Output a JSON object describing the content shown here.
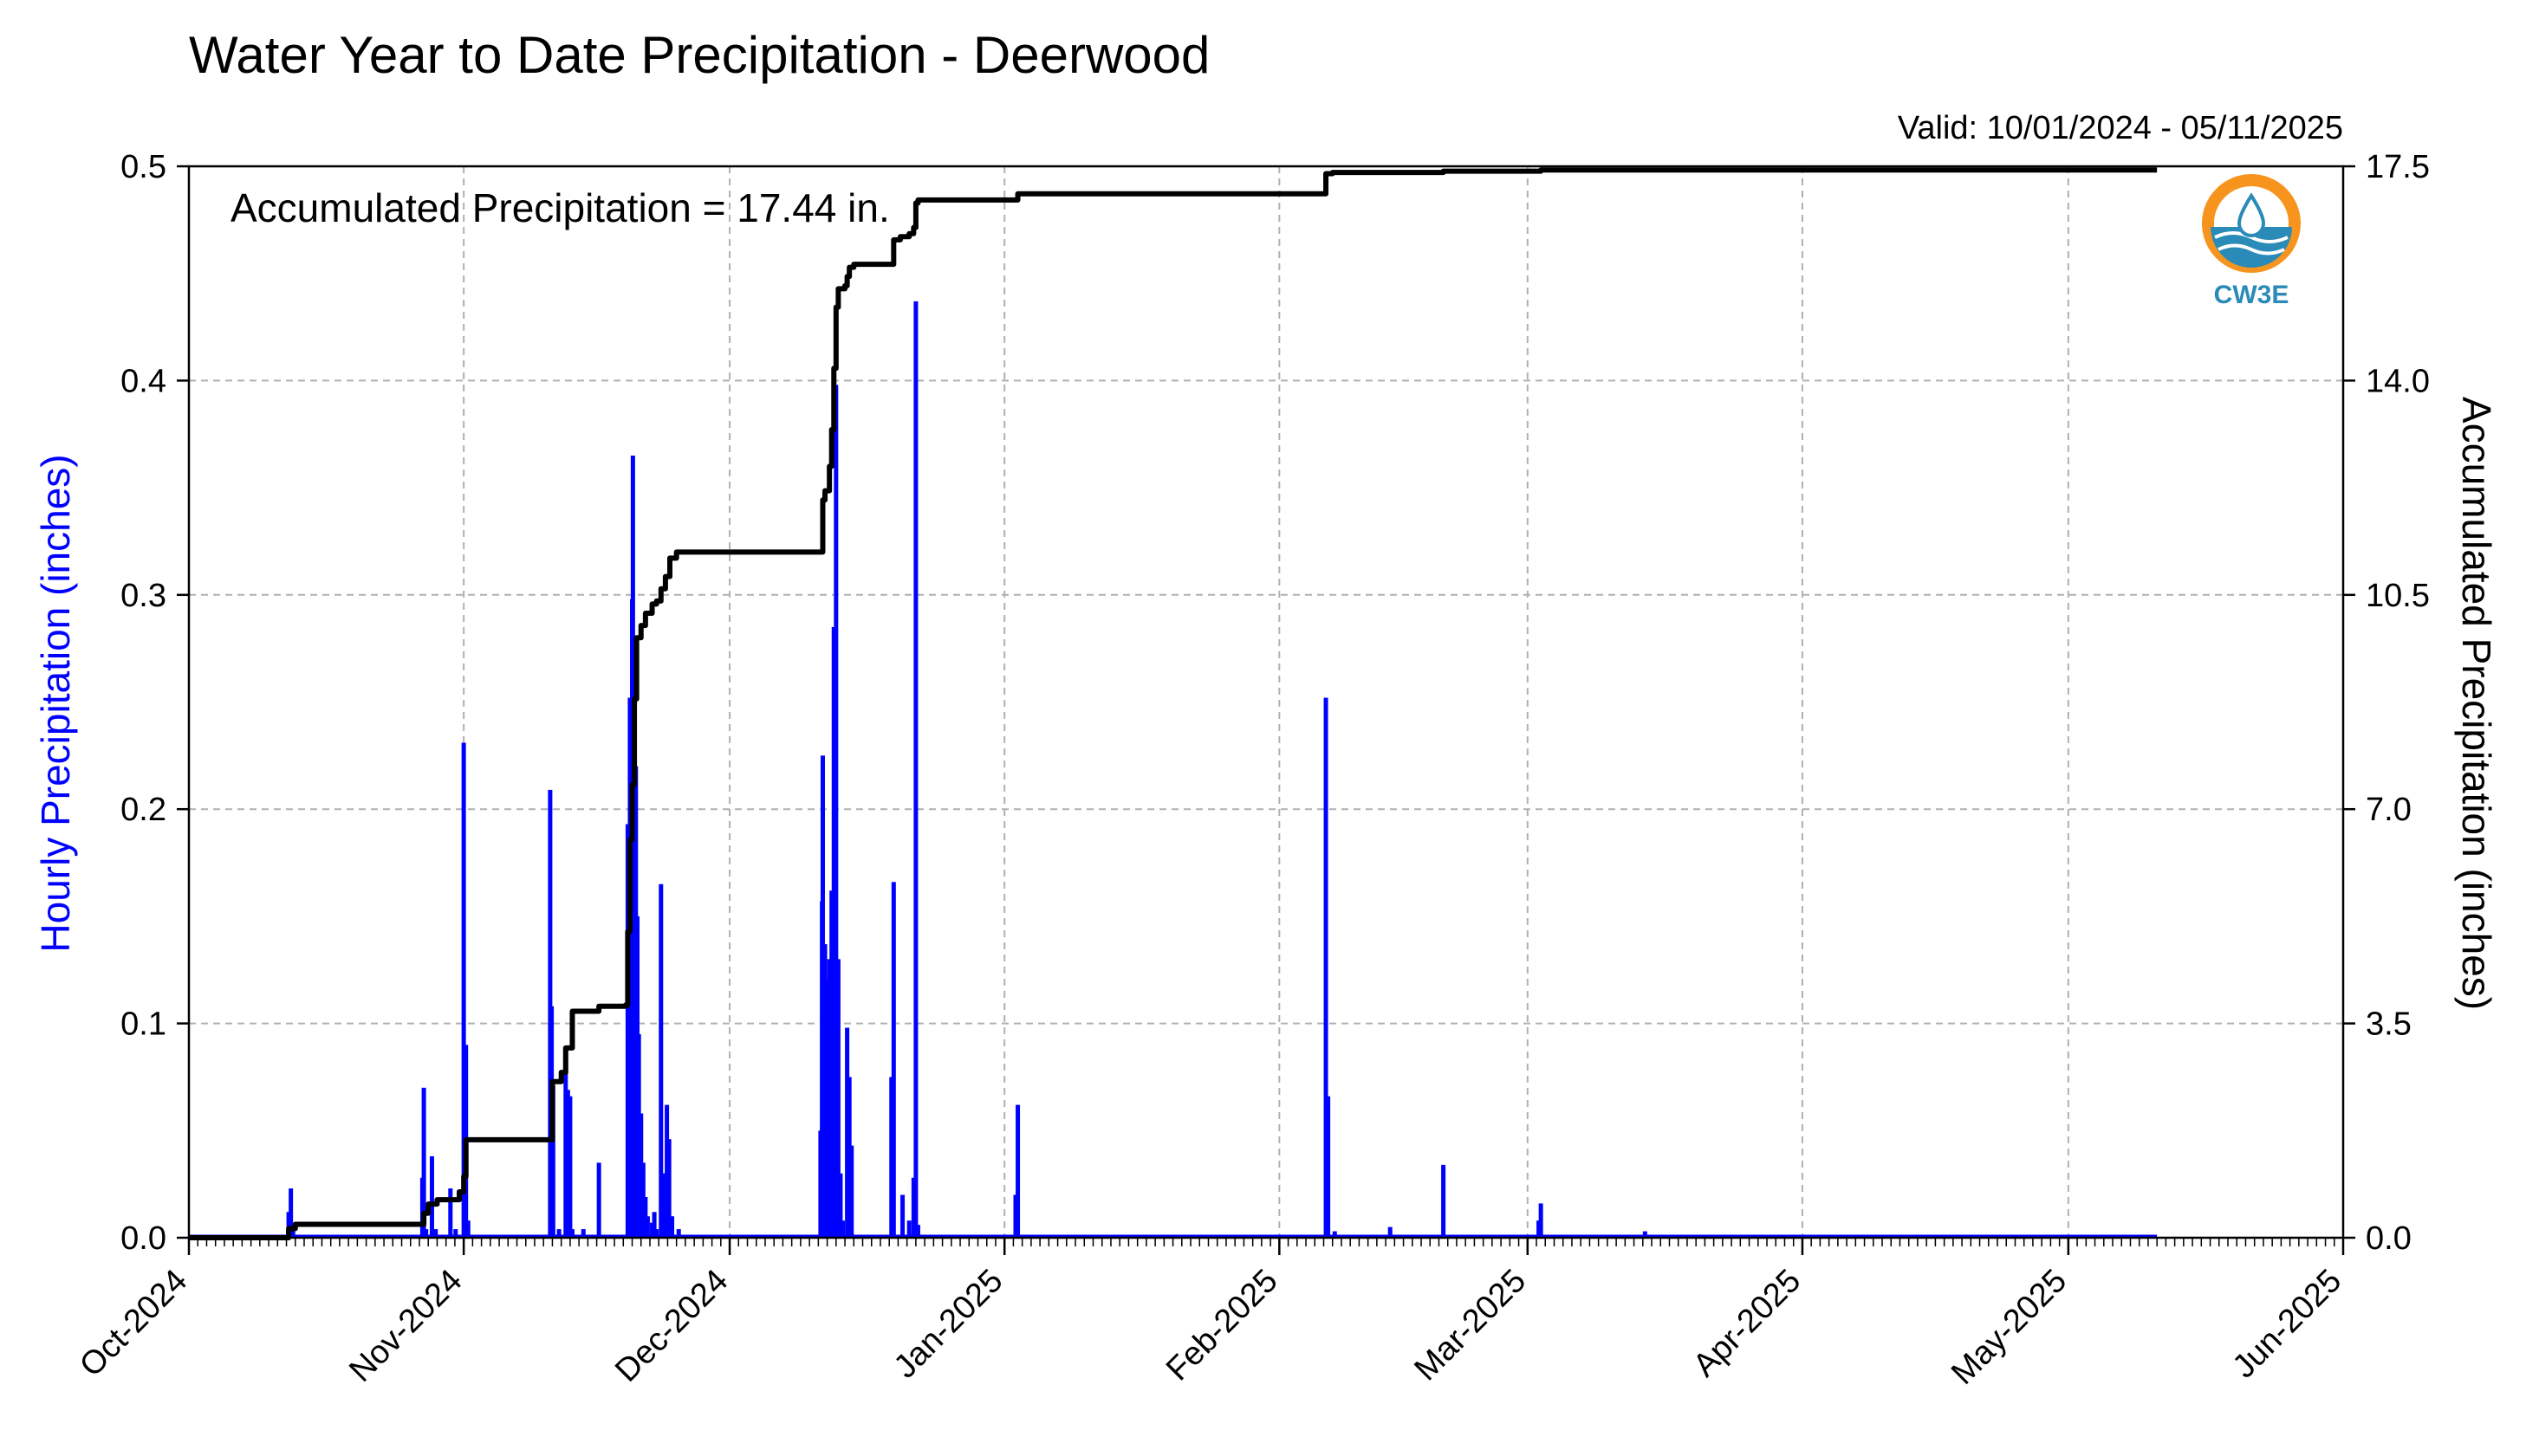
{
  "chart_data": {
    "type": "bar",
    "title": "Water Year to Date Precipitation - Deerwood",
    "valid_text": "Valid: 10/01/2024 - 05/11/2025",
    "annotation": "Accumulated Precipitation = 17.44 in.",
    "ylabel_left": "Hourly Precipitation (inches)",
    "ylabel_right": "Accumulated Precipitation (inches)",
    "ylim_left": [
      0,
      0.5
    ],
    "ylim_right": [
      0,
      17.5
    ],
    "yticks_left": [
      "0.0",
      "0.1",
      "0.2",
      "0.3",
      "0.4",
      "0.5"
    ],
    "yticks_right": [
      "0.0",
      "3.5",
      "7.0",
      "10.5",
      "14.0",
      "17.5"
    ],
    "x_start": "2024-10-01",
    "x_end": "2025-06-01",
    "xticks": [
      "Oct-2024",
      "Nov-2024",
      "Dec-2024",
      "Jan-2025",
      "Feb-2025",
      "Mar-2025",
      "Apr-2025",
      "May-2025",
      "Jun-2025"
    ],
    "grid": true,
    "series": [
      {
        "name": "Hourly Precipitation",
        "type": "bar",
        "axis": "left",
        "color": "#0000ff",
        "points": [
          [
            "2024-10-12 06:00",
            0.012
          ],
          [
            "2024-10-12 12:00",
            0.023
          ],
          [
            "2024-10-12 18:00",
            0.004
          ],
          [
            "2024-10-27 08:00",
            0.028
          ],
          [
            "2024-10-27 12:00",
            0.07
          ],
          [
            "2024-10-27 18:00",
            0.004
          ],
          [
            "2024-10-28 10:00",
            0.038
          ],
          [
            "2024-10-28 20:00",
            0.004
          ],
          [
            "2024-10-30 12:00",
            0.023
          ],
          [
            "2024-10-31 02:00",
            0.004
          ],
          [
            "2024-11-01 00:00",
            0.231
          ],
          [
            "2024-11-01 06:00",
            0.09
          ],
          [
            "2024-11-01 12:00",
            0.008
          ],
          [
            "2024-11-10 18:00",
            0.209
          ],
          [
            "2024-11-10 22:00",
            0.108
          ],
          [
            "2024-11-11 02:00",
            0.071
          ],
          [
            "2024-11-11 18:00",
            0.004
          ],
          [
            "2024-11-12 12:00",
            0.089
          ],
          [
            "2024-11-12 18:00",
            0.069
          ],
          [
            "2024-11-13 00:00",
            0.066
          ],
          [
            "2024-11-13 06:00",
            0.004
          ],
          [
            "2024-11-14 12:00",
            0.004
          ],
          [
            "2024-11-16 06:00",
            0.035
          ],
          [
            "2024-11-19 12:00",
            0.193
          ],
          [
            "2024-11-19 18:00",
            0.252
          ],
          [
            "2024-11-20 00:00",
            0.298
          ],
          [
            "2024-11-20 02:00",
            0.365
          ],
          [
            "2024-11-20 06:00",
            0.258
          ],
          [
            "2024-11-20 10:00",
            0.22
          ],
          [
            "2024-11-20 14:00",
            0.15
          ],
          [
            "2024-11-20 18:00",
            0.095
          ],
          [
            "2024-11-21 00:00",
            0.058
          ],
          [
            "2024-11-21 06:00",
            0.035
          ],
          [
            "2024-11-21 12:00",
            0.019
          ],
          [
            "2024-11-21 18:00",
            0.01
          ],
          [
            "2024-11-22 06:00",
            0.007
          ],
          [
            "2024-11-22 12:00",
            0.012
          ],
          [
            "2024-11-22 18:00",
            0.004
          ],
          [
            "2024-11-23 06:00",
            0.165
          ],
          [
            "2024-11-23 12:00",
            0.03
          ],
          [
            "2024-11-23 22:00",
            0.062
          ],
          [
            "2024-11-24 04:00",
            0.046
          ],
          [
            "2024-11-24 12:00",
            0.01
          ],
          [
            "2024-11-25 06:00",
            0.004
          ],
          [
            "2024-12-11 06:00",
            0.05
          ],
          [
            "2024-12-11 10:00",
            0.157
          ],
          [
            "2024-12-11 12:00",
            0.225
          ],
          [
            "2024-12-11 18:00",
            0.137
          ],
          [
            "2024-12-12 00:00",
            0.12
          ],
          [
            "2024-12-12 06:00",
            0.13
          ],
          [
            "2024-12-12 12:00",
            0.162
          ],
          [
            "2024-12-12 18:00",
            0.285
          ],
          [
            "2024-12-13 00:00",
            0.398
          ],
          [
            "2024-12-13 06:00",
            0.13
          ],
          [
            "2024-12-13 12:00",
            0.03
          ],
          [
            "2024-12-13 18:00",
            0.008
          ],
          [
            "2024-12-14 06:00",
            0.098
          ],
          [
            "2024-12-14 12:00",
            0.075
          ],
          [
            "2024-12-14 18:00",
            0.043
          ],
          [
            "2024-12-19 06:00",
            0.075
          ],
          [
            "2024-12-19 12:00",
            0.166
          ],
          [
            "2024-12-20 12:00",
            0.02
          ],
          [
            "2024-12-21 06:00",
            0.008
          ],
          [
            "2024-12-21 18:00",
            0.028
          ],
          [
            "2024-12-22 00:00",
            0.437
          ],
          [
            "2024-12-22 06:00",
            0.006
          ],
          [
            "2025-01-02 06:00",
            0.02
          ],
          [
            "2025-01-02 12:00",
            0.062
          ],
          [
            "2025-02-06 06:00",
            0.252
          ],
          [
            "2025-02-06 12:00",
            0.066
          ],
          [
            "2025-02-07 06:00",
            0.003
          ],
          [
            "2025-02-13 12:00",
            0.005
          ],
          [
            "2025-02-19 12:00",
            0.034
          ],
          [
            "2025-03-02 06:00",
            0.008
          ],
          [
            "2025-03-02 12:00",
            0.016
          ],
          [
            "2025-03-14 06:00",
            0.003
          ]
        ]
      },
      {
        "name": "Accumulated Precipitation",
        "type": "step",
        "axis": "right",
        "color": "#000000",
        "points": [
          [
            "2024-10-01 00:00",
            0.0
          ],
          [
            "2024-10-12 00:00",
            0.0
          ],
          [
            "2024-10-12 06:00",
            0.15
          ],
          [
            "2024-10-13 00:00",
            0.22
          ],
          [
            "2024-10-27 06:00",
            0.22
          ],
          [
            "2024-10-27 12:00",
            0.4
          ],
          [
            "2024-10-28 00:00",
            0.55
          ],
          [
            "2024-10-29 00:00",
            0.62
          ],
          [
            "2024-10-31 00:00",
            0.62
          ],
          [
            "2024-10-31 12:00",
            0.75
          ],
          [
            "2024-11-01 00:00",
            1.0
          ],
          [
            "2024-11-01 06:00",
            1.6
          ],
          [
            "2024-11-10 18:00",
            1.6
          ],
          [
            "2024-11-11 00:00",
            2.55
          ],
          [
            "2024-11-12 00:00",
            2.7
          ],
          [
            "2024-11-12 12:00",
            3.1
          ],
          [
            "2024-11-13 06:00",
            3.7
          ],
          [
            "2024-11-16 00:00",
            3.7
          ],
          [
            "2024-11-16 06:00",
            3.78
          ],
          [
            "2024-11-19 06:00",
            3.8
          ],
          [
            "2024-11-19 12:00",
            5.0
          ],
          [
            "2024-11-19 18:00",
            6.5
          ],
          [
            "2024-11-20 00:00",
            7.4
          ],
          [
            "2024-11-20 06:00",
            8.8
          ],
          [
            "2024-11-20 12:00",
            9.8
          ],
          [
            "2024-11-21 00:00",
            10.0
          ],
          [
            "2024-11-21 12:00",
            10.2
          ],
          [
            "2024-11-22 06:00",
            10.35
          ],
          [
            "2024-11-22 18:00",
            10.4
          ],
          [
            "2024-11-23 06:00",
            10.6
          ],
          [
            "2024-11-23 18:00",
            10.8
          ],
          [
            "2024-11-24 06:00",
            11.1
          ],
          [
            "2024-11-25 00:00",
            11.2
          ],
          [
            "2024-12-11 06:00",
            11.2
          ],
          [
            "2024-12-11 12:00",
            12.05
          ],
          [
            "2024-12-11 18:00",
            12.2
          ],
          [
            "2024-12-12 06:00",
            12.6
          ],
          [
            "2024-12-12 12:00",
            13.2
          ],
          [
            "2024-12-12 18:00",
            14.2
          ],
          [
            "2024-12-13 00:00",
            15.2
          ],
          [
            "2024-12-13 06:00",
            15.5
          ],
          [
            "2024-12-14 00:00",
            15.55
          ],
          [
            "2024-12-14 06:00",
            15.7
          ],
          [
            "2024-12-14 12:00",
            15.85
          ],
          [
            "2024-12-15 00:00",
            15.9
          ],
          [
            "2024-12-19 06:00",
            15.9
          ],
          [
            "2024-12-19 12:00",
            16.3
          ],
          [
            "2024-12-20 06:00",
            16.35
          ],
          [
            "2024-12-21 06:00",
            16.4
          ],
          [
            "2024-12-21 18:00",
            16.5
          ],
          [
            "2024-12-22 00:00",
            16.9
          ],
          [
            "2024-12-22 06:00",
            16.95
          ],
          [
            "2025-01-02 06:00",
            16.95
          ],
          [
            "2025-01-02 12:00",
            17.05
          ],
          [
            "2025-02-06 00:00",
            17.05
          ],
          [
            "2025-02-06 06:00",
            17.38
          ],
          [
            "2025-02-07 00:00",
            17.4
          ],
          [
            "2025-02-19 06:00",
            17.4
          ],
          [
            "2025-02-19 12:00",
            17.42
          ],
          [
            "2025-03-02 00:00",
            17.42
          ],
          [
            "2025-03-02 12:00",
            17.44
          ],
          [
            "2025-05-11 00:00",
            17.44
          ]
        ]
      }
    ]
  },
  "logo": {
    "text": "CW3E",
    "orange": "#f7941d",
    "blue": "#2a8ab8"
  }
}
